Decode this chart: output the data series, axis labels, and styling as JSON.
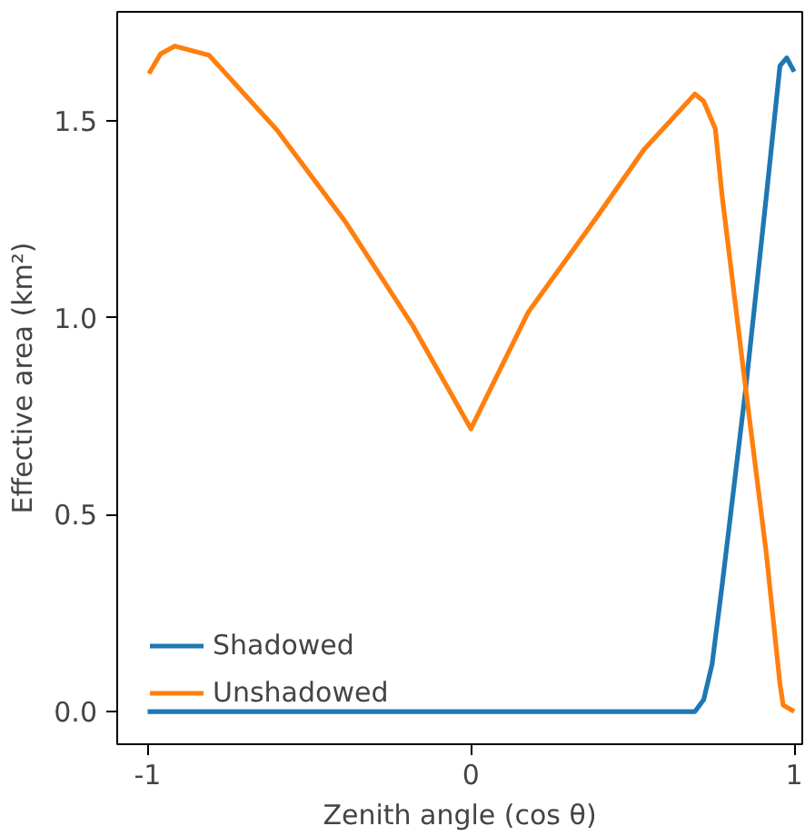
{
  "chart_data": {
    "type": "line",
    "xlabel": "Zenith angle (cos θ)",
    "ylabel": "Effective area (km²)",
    "xlim": [
      -1.094,
      1.025
    ],
    "ylim": [
      -0.083,
      1.777
    ],
    "xticks": [
      -1,
      0,
      1
    ],
    "yticks": [
      {
        "value": 0,
        "label": "0.0"
      },
      {
        "value": 0.5,
        "label": "0.5"
      },
      {
        "value": 1,
        "label": "1.0"
      },
      {
        "value": 1.5,
        "label": "1.5"
      }
    ],
    "grid": false,
    "legend": "bottom left",
    "line_style": "solid",
    "marker": "none",
    "series": [
      {
        "name": "Shadowed",
        "color": "#1f77b4",
        "x": [
          -1,
          -0.5,
          0,
          0.5,
          0.693,
          0.72,
          0.746,
          0.777,
          0.85,
          0.914,
          0.956,
          0.977,
          1.0
        ],
        "values": [
          0,
          0,
          0,
          0,
          0,
          0.03,
          0.12,
          0.32,
          0.82,
          1.31,
          1.64,
          1.66,
          1.625
        ]
      },
      {
        "name": "Unshadowed",
        "color": "#ff7f0e",
        "x": [
          -0.996,
          -0.96,
          -0.916,
          -0.81,
          -0.6,
          -0.39,
          -0.18,
          0.0,
          0.178,
          0.388,
          0.535,
          0.693,
          0.72,
          0.756,
          0.777,
          0.85,
          0.914,
          0.956,
          0.966,
          1.0
        ],
        "values": [
          1.62,
          1.67,
          1.69,
          1.667,
          1.477,
          1.246,
          0.98,
          0.718,
          1.015,
          1.254,
          1.427,
          1.568,
          1.55,
          1.48,
          1.31,
          0.82,
          0.4,
          0.07,
          0.016,
          0.0
        ]
      }
    ]
  }
}
